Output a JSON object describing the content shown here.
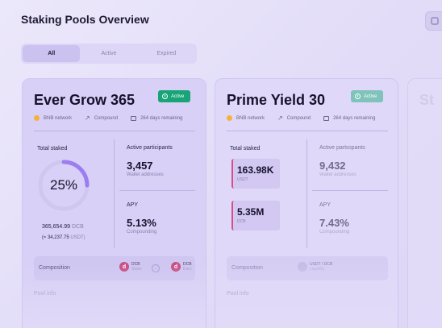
{
  "page": {
    "title": "Staking Pools Overview"
  },
  "tabs": [
    {
      "label": "All",
      "active": true
    },
    {
      "label": "Active",
      "active": false
    },
    {
      "label": "Expired",
      "active": false
    }
  ],
  "colors": {
    "active_badge": "#17a476",
    "accent_purple": "#9b7df0",
    "stake_bar": "#d44f86"
  },
  "pools": [
    {
      "name": "Ever Grow 365",
      "status": "Active",
      "network": "BNB network",
      "compound": "Compound",
      "remaining": "264 days remaining",
      "total_staked_label": "Total staked",
      "staked_percent_text": "25%",
      "staked_fraction": 0.25,
      "staked_amount": "365,654.99",
      "staked_unit": "DCB",
      "staked_usd": "(≈ 34,237.75",
      "staked_usd_unit": "USDT)",
      "participants_label": "Active participants",
      "participants_value": "3,457",
      "participants_sub": "Wallet addresses",
      "apy_label": "APY",
      "apy_value": "5.13%",
      "apy_sub": "Compounding",
      "composition_label": "Composition",
      "token_a": {
        "symbol": "DCB",
        "sub": "Stake"
      },
      "token_b": {
        "symbol": "DCB",
        "sub": "Earn"
      },
      "pool_info": "Pool info"
    },
    {
      "name": "Prime Yield 30",
      "status": "Active",
      "network": "BNB network",
      "compound": "Compound",
      "remaining": "264 days remaining",
      "total_staked_label": "Total staked",
      "staked_value_1": "163.98K",
      "staked_unit_1": "USDT",
      "staked_value_2": "5.35M",
      "staked_unit_2": "DCB",
      "participants_label": "Active participants",
      "participants_value": "9,432",
      "participants_sub": "Wallet addresses",
      "apy_label": "APY",
      "apy_value": "7.43%",
      "apy_sub": "Compounding",
      "composition_label": "Composition",
      "pair": "USDT / DCB",
      "pair_sub": "Liquidity",
      "pool_info": "Pool info"
    },
    {
      "name": "St"
    }
  ]
}
